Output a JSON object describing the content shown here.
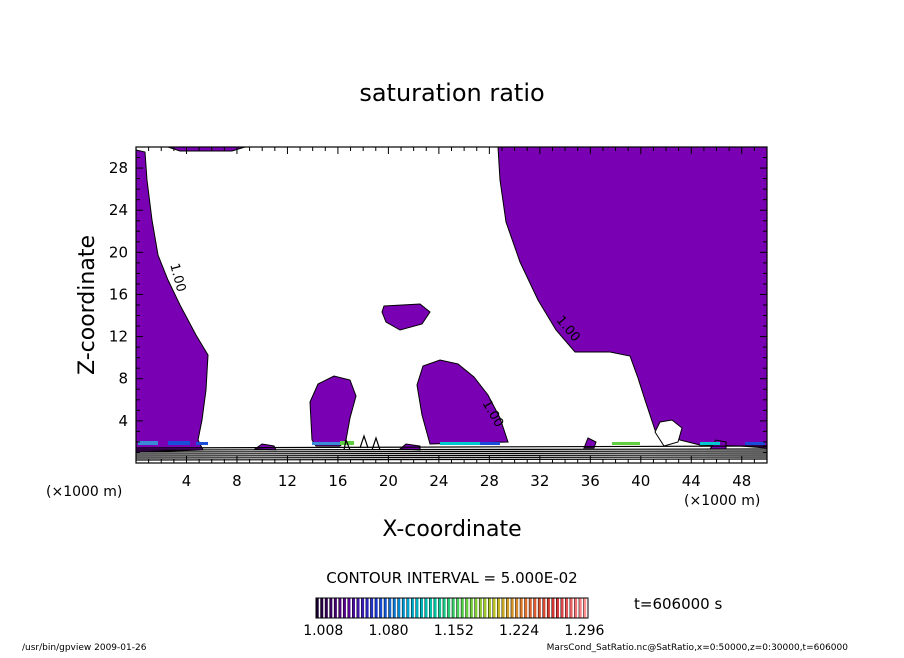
{
  "chart_data": {
    "type": "contour",
    "title": "saturation ratio",
    "xlabel": "X-coordinate",
    "ylabel": "Z-coordinate",
    "x_unit": "(×1000 m)",
    "y_unit": "(×1000 m)",
    "xlim": [
      0,
      50
    ],
    "ylim": [
      0,
      30
    ],
    "x_ticks": [
      4,
      8,
      12,
      16,
      20,
      24,
      28,
      32,
      36,
      40,
      44,
      48
    ],
    "y_ticks": [
      4,
      8,
      12,
      16,
      20,
      24,
      28
    ],
    "contour_labels": [
      {
        "text": "1.00",
        "x": 3.0,
        "y": 17.5
      },
      {
        "text": "1.00",
        "x": 34.0,
        "y": 12.5
      },
      {
        "text": "1.00",
        "x": 28.0,
        "y": 4.5
      }
    ],
    "contour_interval_text": "CONTOUR INTERVAL = 5.000E-02",
    "time_text": "t=606000 s",
    "colorbar": {
      "tick_labels": [
        "1.008",
        "1.080",
        "1.152",
        "1.224",
        "1.296"
      ],
      "range": [
        1.0,
        1.3
      ],
      "colors": [
        "#1a0033",
        "#5a0090",
        "#1a3ad0",
        "#00a0d0",
        "#00c8a0",
        "#60d040",
        "#c0c020",
        "#e07030",
        "#d03030",
        "#ff9090"
      ]
    },
    "fill_color": "#7a00b4",
    "footer_left": "/usr/bin/gpview   2009-01-26",
    "footer_right": "MarsCond_SatRatio.nc@SatRatio,x=0:50000,z=0:30000,t=606000"
  }
}
